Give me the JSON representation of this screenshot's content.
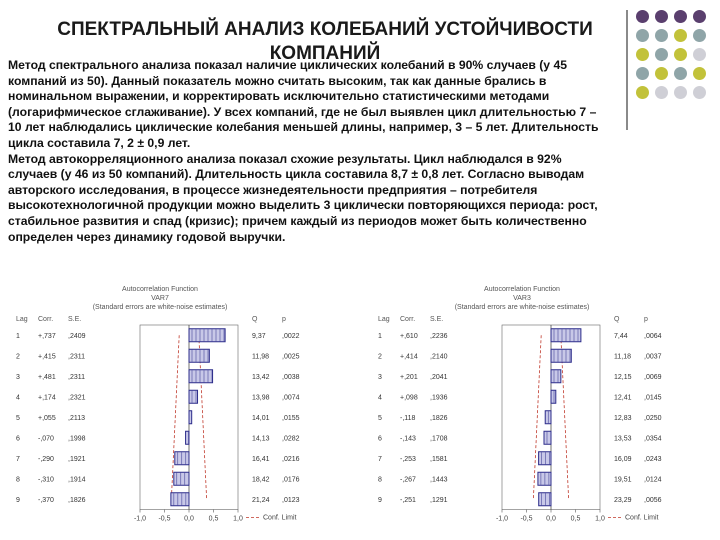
{
  "title": "СПЕКТРАЛЬНЫЙ АНАЛИЗ КОЛЕБАНИЙ УСТОЙЧИВОСТИ КОМПАНИЙ",
  "paragraphs": [
    "Метод спектрального анализа показал наличие циклических колебаний в 90% случаев (у 45 компаний из 50). Данный показатель можно считать высоким, так как данные брались в номинальном выражении, и корректировать исключительно статистическими методами (логарифмическое сглаживание). У всех компаний, где не был выявлен цикл длительностью 7 – 10 лет наблюдались циклические колебания меньшей длины, например, 3 – 5 лет. Длительность цикла составила 7, 2 ± 0,9 лет.",
    "Метод автокорреляционного анализа показал схожие результаты. Цикл наблюдался в 92% случаев (у 46 из 50 компаний). Длительность цикла составила 8,7 ± 0,8 лет. Согласно выводам авторского исследования, в процессе жизнедеятельности предприятия – потребителя высокотехнологичной продукции можно выделить 3 циклически повторяющихся периода: рост, стабильное развития и спад (кризис); причем каждый из периодов может быть количественно определен через динамику годовой выручки."
  ],
  "decor_colors": [
    "#5a3f6e",
    "#8fa5a8",
    "#c2c23a",
    "#cfcfd6"
  ],
  "chart_data": [
    {
      "type": "bar",
      "title": "Autocorrelation Function",
      "subtitle": "VAR7",
      "note": "(Standard errors are white-noise estimates)",
      "columns": [
        "Lag",
        "Corr.",
        "S.E.",
        "Q",
        "p"
      ],
      "categories": [
        "1",
        "2",
        "3",
        "4",
        "5",
        "6",
        "7",
        "8",
        "9"
      ],
      "values": [
        0.737,
        0.415,
        0.481,
        0.174,
        0.055,
        -0.07,
        -0.29,
        -0.31,
        -0.37
      ],
      "cells": [
        [
          "1",
          "+,737",
          ",2409",
          "9,37",
          ",0022"
        ],
        [
          "2",
          "+,415",
          ",2311",
          "11,98",
          ",0025"
        ],
        [
          "3",
          "+,481",
          ",2311",
          "13,42",
          ",0038"
        ],
        [
          "4",
          "+,174",
          ",2321",
          "13,98",
          ",0074"
        ],
        [
          "5",
          "+,055",
          ",2113",
          "14,01",
          ",0155"
        ],
        [
          "6",
          "-,070",
          ",1998",
          "14,13",
          ",0282"
        ],
        [
          "7",
          "-,290",
          ",1921",
          "16,41",
          ",0216"
        ],
        [
          "8",
          "-,310",
          ",1914",
          "18,42",
          ",0176"
        ],
        [
          "9",
          "-,370",
          ",1826",
          "21,24",
          ",0123"
        ]
      ],
      "xticks": [
        "-1,0",
        "-0,5",
        "0,0",
        "0,5",
        "1,0"
      ],
      "xlim": [
        -1,
        1
      ],
      "legend": "Conf. Limit",
      "bar_color": "#2c2c8a"
    },
    {
      "type": "bar",
      "title": "Autocorrelation Function",
      "subtitle": "VAR3",
      "note": "(Standard errors are white-noise estimates)",
      "columns": [
        "Lag",
        "Corr.",
        "S.E.",
        "Q",
        "p"
      ],
      "categories": [
        "1",
        "2",
        "3",
        "4",
        "5",
        "6",
        "7",
        "8",
        "9"
      ],
      "values": [
        0.61,
        0.414,
        0.201,
        0.098,
        -0.118,
        -0.143,
        -0.253,
        -0.267,
        -0.251
      ],
      "cells": [
        [
          "1",
          "+,610",
          ",2236",
          "7,44",
          ",0064"
        ],
        [
          "2",
          "+,414",
          ",2140",
          "11,18",
          ",0037"
        ],
        [
          "3",
          "+,201",
          ",2041",
          "12,15",
          ",0069"
        ],
        [
          "4",
          "+,098",
          ",1936",
          "12,41",
          ",0145"
        ],
        [
          "5",
          "-,118",
          ",1826",
          "12,83",
          ",0250"
        ],
        [
          "6",
          "-,143",
          ",1708",
          "13,53",
          ",0354"
        ],
        [
          "7",
          "-,253",
          ",1581",
          "16,09",
          ",0243"
        ],
        [
          "8",
          "-,267",
          ",1443",
          "19,51",
          ",0124"
        ],
        [
          "9",
          "-,251",
          ",1291",
          "23,29",
          ",0056"
        ]
      ],
      "xticks": [
        "-1,0",
        "-0,5",
        "0,0",
        "0,5",
        "1,0"
      ],
      "xlim": [
        -1,
        1
      ],
      "legend": "Conf. Limit",
      "bar_color": "#2c2c8a"
    }
  ]
}
